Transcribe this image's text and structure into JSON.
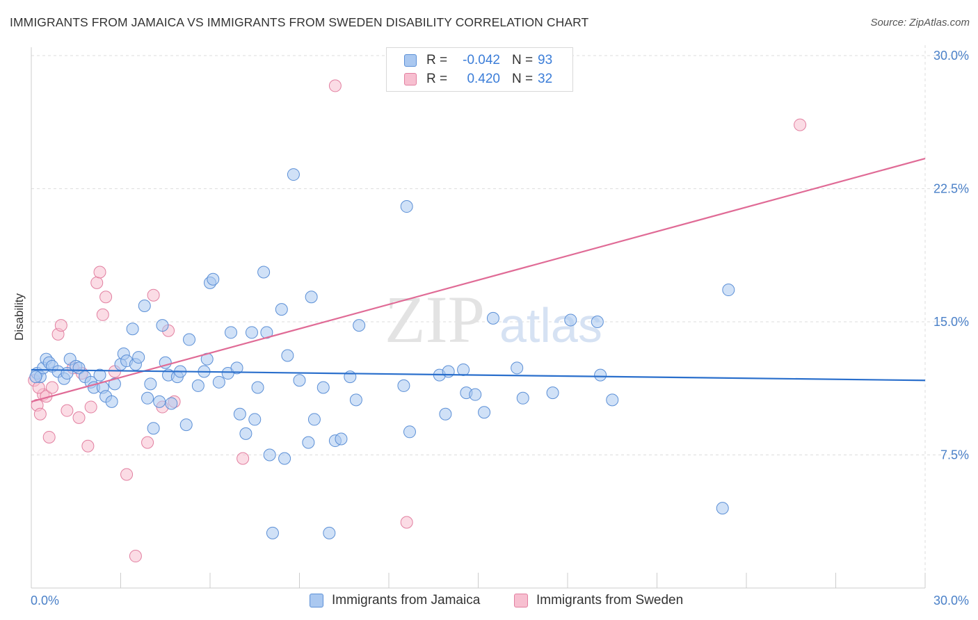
{
  "header": {
    "title": "IMMIGRANTS FROM JAMAICA VS IMMIGRANTS FROM SWEDEN DISABILITY CORRELATION CHART",
    "source": "Source: ZipAtlas.com"
  },
  "watermark": {
    "text_zip": "ZIP",
    "text_atlas": "atlas"
  },
  "legend": {
    "rows": [
      {
        "r_label": "R =",
        "r_value": "-0.042",
        "n_label": "N =",
        "n_value": "93"
      },
      {
        "r_label": "R =",
        "r_value": "0.420",
        "n_label": "N =",
        "n_value": "32"
      }
    ]
  },
  "bottom_legend": {
    "jamaica": "Immigrants from Jamaica",
    "sweden": "Immigrants from Sweden"
  },
  "colors": {
    "jamaica_fill": "#aac8f0",
    "jamaica_stroke": "#5b8fd6",
    "jamaica_line": "#2a6fcc",
    "sweden_fill": "#f7bfd0",
    "sweden_stroke": "#e27fa0",
    "sweden_line": "#e06b96",
    "grid": "#dddddd",
    "tick_text": "#4a80c8"
  },
  "chart_data": {
    "type": "scatter",
    "title": "IMMIGRANTS FROM JAMAICA VS IMMIGRANTS FROM SWEDEN DISABILITY CORRELATION CHART",
    "xlabel": "",
    "ylabel": "Disability",
    "xlim": [
      0,
      30
    ],
    "ylim": [
      0,
      30
    ],
    "x_tick_labels": [
      "0.0%",
      "30.0%"
    ],
    "y_ticks": [
      7.5,
      15.0,
      22.5,
      30.0
    ],
    "y_tick_labels": [
      "7.5%",
      "15.0%",
      "22.5%",
      "30.0%"
    ],
    "grid": true,
    "legend_position": "top-center",
    "series": [
      {
        "name": "Immigrants from Jamaica",
        "r": -0.042,
        "n": 93,
        "trend": {
          "x": [
            0,
            30
          ],
          "y": [
            12.3,
            11.7
          ]
        },
        "points": [
          [
            0.2,
            12.1
          ],
          [
            0.3,
            11.9
          ],
          [
            0.4,
            12.4
          ],
          [
            0.5,
            12.9
          ],
          [
            0.6,
            12.7
          ],
          [
            0.7,
            12.5
          ],
          [
            0.9,
            12.2
          ],
          [
            1.1,
            11.8
          ],
          [
            1.2,
            12.1
          ],
          [
            1.3,
            12.9
          ],
          [
            1.5,
            12.5
          ],
          [
            1.6,
            12.4
          ],
          [
            1.8,
            11.9
          ],
          [
            2.0,
            11.6
          ],
          [
            2.1,
            11.3
          ],
          [
            2.3,
            12.0
          ],
          [
            2.4,
            11.3
          ],
          [
            2.5,
            10.8
          ],
          [
            2.7,
            10.5
          ],
          [
            2.8,
            11.5
          ],
          [
            3.0,
            12.6
          ],
          [
            3.1,
            13.2
          ],
          [
            3.2,
            12.8
          ],
          [
            3.4,
            14.6
          ],
          [
            3.5,
            12.6
          ],
          [
            3.6,
            13.0
          ],
          [
            3.8,
            15.9
          ],
          [
            3.9,
            10.7
          ],
          [
            4.0,
            11.5
          ],
          [
            4.1,
            9.0
          ],
          [
            4.3,
            10.5
          ],
          [
            4.4,
            14.8
          ],
          [
            4.5,
            12.7
          ],
          [
            4.6,
            12.0
          ],
          [
            4.7,
            10.4
          ],
          [
            4.9,
            11.9
          ],
          [
            5.0,
            12.2
          ],
          [
            5.2,
            9.2
          ],
          [
            5.3,
            14.0
          ],
          [
            5.6,
            11.4
          ],
          [
            5.8,
            12.2
          ],
          [
            5.9,
            12.9
          ],
          [
            6.0,
            17.2
          ],
          [
            6.1,
            17.4
          ],
          [
            6.3,
            11.6
          ],
          [
            6.6,
            12.1
          ],
          [
            6.7,
            14.4
          ],
          [
            6.9,
            12.4
          ],
          [
            7.0,
            9.8
          ],
          [
            7.2,
            8.7
          ],
          [
            7.4,
            14.4
          ],
          [
            7.5,
            9.5
          ],
          [
            7.6,
            11.3
          ],
          [
            7.8,
            17.8
          ],
          [
            7.9,
            14.4
          ],
          [
            8.0,
            7.5
          ],
          [
            8.1,
            3.1
          ],
          [
            8.4,
            15.7
          ],
          [
            8.5,
            7.3
          ],
          [
            8.6,
            13.1
          ],
          [
            8.8,
            23.3
          ],
          [
            9.0,
            11.7
          ],
          [
            9.3,
            8.2
          ],
          [
            9.4,
            16.4
          ],
          [
            9.5,
            9.5
          ],
          [
            9.8,
            11.3
          ],
          [
            10.0,
            3.1
          ],
          [
            10.2,
            8.3
          ],
          [
            10.4,
            8.4
          ],
          [
            10.7,
            11.9
          ],
          [
            10.9,
            10.6
          ],
          [
            11.0,
            14.8
          ],
          [
            12.5,
            11.4
          ],
          [
            12.6,
            21.5
          ],
          [
            12.7,
            8.8
          ],
          [
            13.7,
            12.0
          ],
          [
            13.9,
            9.8
          ],
          [
            14.0,
            12.2
          ],
          [
            14.5,
            12.3
          ],
          [
            14.6,
            11.0
          ],
          [
            14.9,
            10.9
          ],
          [
            15.2,
            9.9
          ],
          [
            15.5,
            15.2
          ],
          [
            16.3,
            12.4
          ],
          [
            16.5,
            10.7
          ],
          [
            17.5,
            11.0
          ],
          [
            18.1,
            15.1
          ],
          [
            19.0,
            15.0
          ],
          [
            19.1,
            12.0
          ],
          [
            19.5,
            10.6
          ],
          [
            23.2,
            4.5
          ],
          [
            23.4,
            16.8
          ],
          [
            0.15,
            11.9
          ]
        ]
      },
      {
        "name": "Immigrants from Sweden",
        "r": 0.42,
        "n": 32,
        "trend": {
          "x": [
            0,
            30
          ],
          "y": [
            10.5,
            24.2
          ]
        },
        "points": [
          [
            0.1,
            11.7
          ],
          [
            0.2,
            10.3
          ],
          [
            0.3,
            9.8
          ],
          [
            0.4,
            10.9
          ],
          [
            0.5,
            10.8
          ],
          [
            0.6,
            8.5
          ],
          [
            0.7,
            11.3
          ],
          [
            0.9,
            14.3
          ],
          [
            1.0,
            14.8
          ],
          [
            1.2,
            10.0
          ],
          [
            1.4,
            12.4
          ],
          [
            1.6,
            9.6
          ],
          [
            1.7,
            12.1
          ],
          [
            1.9,
            8.0
          ],
          [
            2.0,
            10.2
          ],
          [
            2.2,
            17.2
          ],
          [
            2.3,
            17.8
          ],
          [
            2.4,
            15.4
          ],
          [
            2.5,
            16.4
          ],
          [
            2.8,
            12.2
          ],
          [
            3.2,
            6.4
          ],
          [
            3.5,
            1.8
          ],
          [
            3.9,
            8.2
          ],
          [
            4.1,
            16.5
          ],
          [
            4.4,
            10.2
          ],
          [
            4.6,
            14.5
          ],
          [
            4.8,
            10.5
          ],
          [
            7.1,
            7.3
          ],
          [
            10.2,
            28.3
          ],
          [
            12.6,
            3.7
          ],
          [
            25.8,
            26.1
          ],
          [
            0.25,
            11.3
          ]
        ]
      }
    ]
  }
}
